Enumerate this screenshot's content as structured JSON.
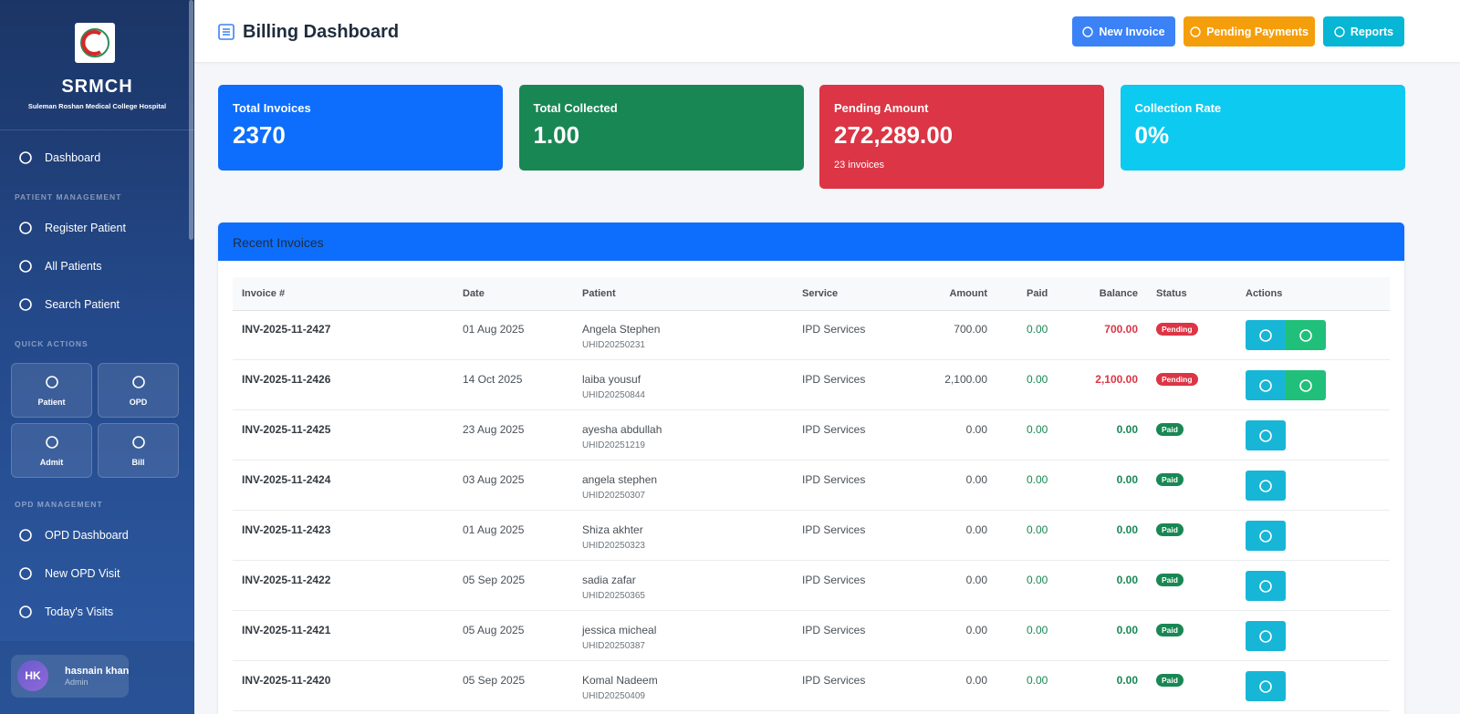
{
  "sidebar": {
    "brand": "SRMCH",
    "subtitle": "Suleman Roshan Medical College Hospital",
    "dashboard": "Dashboard",
    "sections": [
      {
        "title": "PATIENT MANAGEMENT",
        "items": [
          "Register Patient",
          "All Patients",
          "Search Patient"
        ]
      },
      {
        "title": "QUICK ACTIONS",
        "tiles": [
          "Patient",
          "OPD",
          "Admit",
          "Bill"
        ]
      },
      {
        "title": "OPD MANAGEMENT",
        "items": [
          "OPD Dashboard",
          "New OPD Visit",
          "Today's Visits"
        ]
      }
    ],
    "user": {
      "initials": "HK",
      "name": "hasnain khan",
      "role": "Admin"
    }
  },
  "header": {
    "title": "Billing Dashboard",
    "buttons": [
      "New Invoice",
      "Pending Payments",
      "Reports"
    ]
  },
  "stats": [
    {
      "label": "Total Invoices",
      "value": "2370"
    },
    {
      "label": "Total Collected",
      "value": "1.00"
    },
    {
      "label": "Pending Amount",
      "value": "272,289.00",
      "note": "23 invoices"
    },
    {
      "label": "Collection Rate",
      "value": "0%"
    }
  ],
  "table": {
    "title": "Recent Invoices",
    "columns": [
      "Invoice #",
      "Date",
      "Patient",
      "Service",
      "Amount",
      "Paid",
      "Balance",
      "Status",
      "Actions"
    ],
    "rows": [
      [
        "INV-2025-11-2427",
        "01 Aug 2025",
        "Angela Stephen",
        "UHID20250231",
        "IPD Services",
        "700.00",
        "0.00",
        "700.00",
        "Pending"
      ],
      [
        "INV-2025-11-2426",
        "14 Oct 2025",
        "laiba yousuf",
        "UHID20250844",
        "IPD Services",
        "2,100.00",
        "0.00",
        "2,100.00",
        "Pending"
      ],
      [
        "INV-2025-11-2425",
        "23 Aug 2025",
        "ayesha abdullah",
        "UHID20251219",
        "IPD Services",
        "0.00",
        "0.00",
        "0.00",
        "Paid"
      ],
      [
        "INV-2025-11-2424",
        "03 Aug 2025",
        "angela stephen",
        "UHID20250307",
        "IPD Services",
        "0.00",
        "0.00",
        "0.00",
        "Paid"
      ],
      [
        "INV-2025-11-2423",
        "01 Aug 2025",
        "Shiza akhter",
        "UHID20250323",
        "IPD Services",
        "0.00",
        "0.00",
        "0.00",
        "Paid"
      ],
      [
        "INV-2025-11-2422",
        "05 Sep 2025",
        "sadia zafar",
        "UHID20250365",
        "IPD Services",
        "0.00",
        "0.00",
        "0.00",
        "Paid"
      ],
      [
        "INV-2025-11-2421",
        "05 Aug 2025",
        "jessica micheal",
        "UHID20250387",
        "IPD Services",
        "0.00",
        "0.00",
        "0.00",
        "Paid"
      ],
      [
        "INV-2025-11-2420",
        "05 Sep 2025",
        "Komal Nadeem",
        "UHID20250409",
        "IPD Services",
        "0.00",
        "0.00",
        "0.00",
        "Paid"
      ]
    ]
  }
}
